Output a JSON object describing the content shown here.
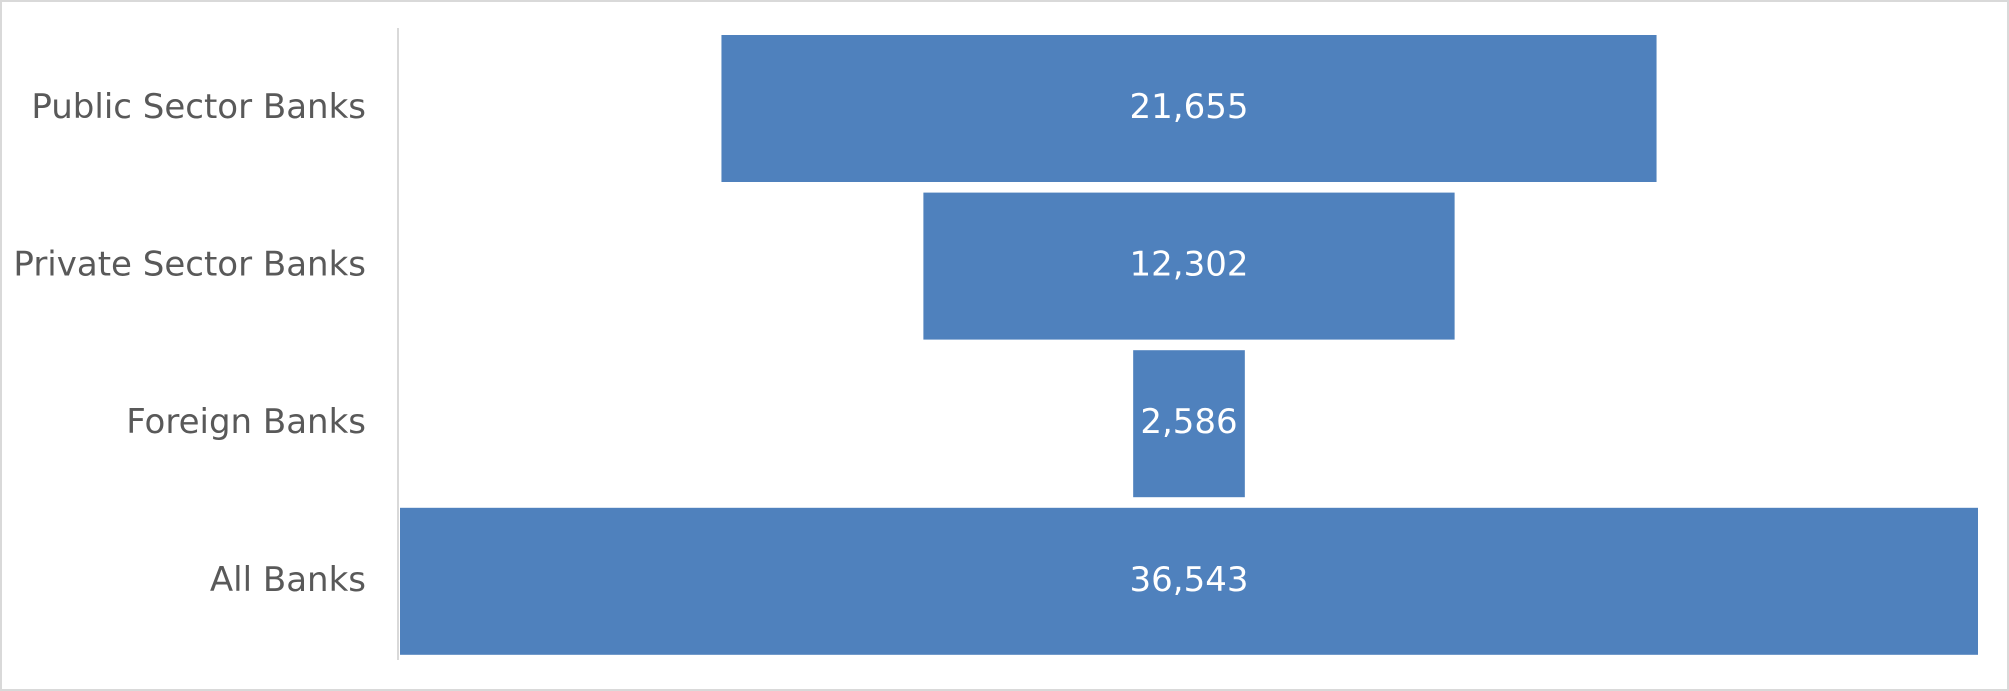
{
  "chart_data": {
    "type": "funnel",
    "categories": [
      "Public Sector Banks",
      "Private Sector Banks",
      "Foreign Banks",
      "All Banks"
    ],
    "values": [
      21655,
      12302,
      2586,
      36543
    ],
    "value_labels": [
      "21,655",
      "12,302",
      "2,586",
      "36,543"
    ],
    "color": "#4f81bd"
  }
}
